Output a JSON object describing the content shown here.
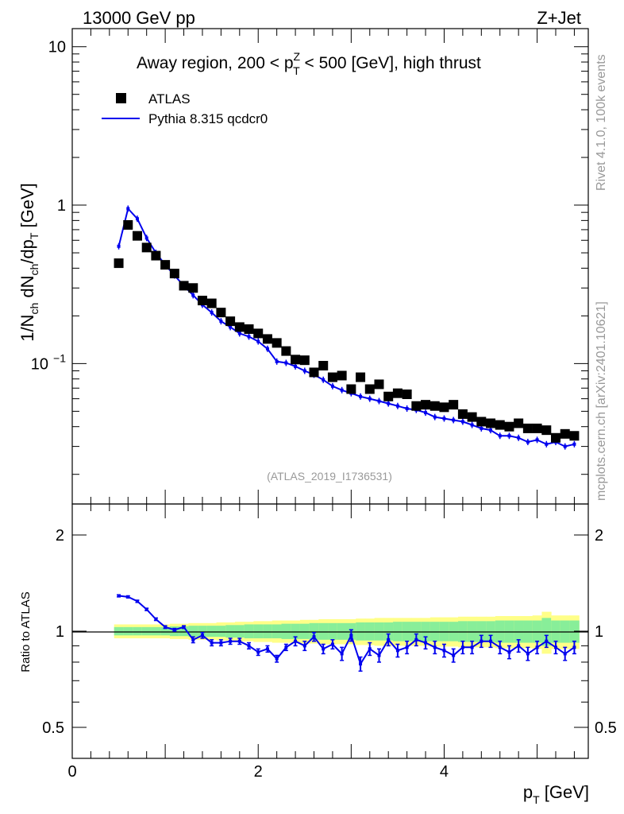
{
  "header": {
    "left": "13000 GeV pp",
    "right": "Z+Jet"
  },
  "side_labels": {
    "rivet": "Rivet 4.1.0,  100k events",
    "mcplots": "mcplots.cern.ch [arXiv:2401.10621]"
  },
  "analysis_tag": "(ATLAS_2019_I1736531)",
  "colors": {
    "data": "#000000",
    "mc": "#0000ee",
    "band_inner": "#88ee99",
    "band_outer": "#ffff88"
  },
  "chart_data": [
    {
      "type": "scatter",
      "title": "Away region, 200 < p_T^Z < 500 [GeV], high thrust",
      "title_parts": {
        "a": "Away region, 200 < p",
        "sup": "Z",
        "sub": "T",
        "b": " < 500 [GeV], high thrust"
      },
      "ylabel": "1/N_ch dN_ch/dp_T [GeV]",
      "ylabel_parts": {
        "a": "1/N",
        "s1": "ch",
        "b": " dN",
        "s2": "ch",
        "c": "/dp",
        "s3": "T",
        "d": " [GeV]"
      },
      "yscale": "log",
      "xlim": [
        0,
        5.55
      ],
      "ylim": [
        0.013,
        13
      ],
      "yticks": [
        {
          "v": 10,
          "label": "10"
        },
        {
          "v": 1,
          "label": "1"
        },
        {
          "v": 0.1,
          "label": "10",
          "sup": "−1"
        }
      ],
      "legend": {
        "position": "top-left",
        "data_label": "ATLAS",
        "mc_label": "Pythia 8.315 qcdcr0"
      },
      "series": [
        {
          "name": "ATLAS",
          "style": "markers",
          "x": [
            0.5,
            0.6,
            0.7,
            0.8,
            0.9,
            1.0,
            1.1,
            1.2,
            1.3,
            1.4,
            1.5,
            1.6,
            1.7,
            1.8,
            1.9,
            2.0,
            2.1,
            2.2,
            2.3,
            2.4,
            2.5,
            2.6,
            2.7,
            2.8,
            2.9,
            3.0,
            3.1,
            3.2,
            3.3,
            3.4,
            3.5,
            3.6,
            3.7,
            3.8,
            3.9,
            4.0,
            4.1,
            4.2,
            4.3,
            4.4,
            4.5,
            4.6,
            4.7,
            4.8,
            4.9,
            5.0,
            5.1,
            5.2,
            5.3,
            5.4
          ],
          "values": [
            0.43,
            0.75,
            0.64,
            0.54,
            0.48,
            0.42,
            0.37,
            0.31,
            0.3,
            0.25,
            0.24,
            0.21,
            0.185,
            0.17,
            0.165,
            0.155,
            0.143,
            0.135,
            0.12,
            0.106,
            0.105,
            0.088,
            0.097,
            0.082,
            0.084,
            0.069,
            0.082,
            0.069,
            0.074,
            0.062,
            0.065,
            0.064,
            0.054,
            0.055,
            0.054,
            0.053,
            0.055,
            0.048,
            0.046,
            0.043,
            0.042,
            0.041,
            0.04,
            0.042,
            0.039,
            0.039,
            0.038,
            0.034,
            0.036,
            0.035
          ]
        },
        {
          "name": "Pythia 8.315 qcdcr0",
          "style": "line",
          "x": [
            0.5,
            0.6,
            0.7,
            0.8,
            0.9,
            1.0,
            1.1,
            1.2,
            1.3,
            1.4,
            1.5,
            1.6,
            1.7,
            1.8,
            1.9,
            2.0,
            2.1,
            2.2,
            2.3,
            2.4,
            2.5,
            2.6,
            2.7,
            2.8,
            2.9,
            3.0,
            3.1,
            3.2,
            3.3,
            3.4,
            3.5,
            3.6,
            3.7,
            3.8,
            3.9,
            4.0,
            4.1,
            4.2,
            4.3,
            4.4,
            4.5,
            4.6,
            4.7,
            4.8,
            4.9,
            5.0,
            5.1,
            5.2,
            5.3,
            5.4
          ],
          "values": [
            0.55,
            0.95,
            0.82,
            0.62,
            0.5,
            0.42,
            0.36,
            0.31,
            0.27,
            0.235,
            0.21,
            0.185,
            0.17,
            0.155,
            0.148,
            0.138,
            0.124,
            0.103,
            0.101,
            0.096,
            0.09,
            0.085,
            0.079,
            0.072,
            0.068,
            0.065,
            0.062,
            0.06,
            0.058,
            0.056,
            0.054,
            0.052,
            0.051,
            0.049,
            0.046,
            0.045,
            0.044,
            0.043,
            0.041,
            0.039,
            0.038,
            0.035,
            0.035,
            0.034,
            0.032,
            0.033,
            0.031,
            0.032,
            0.03,
            0.031
          ]
        }
      ]
    },
    {
      "type": "line",
      "ylabel": "Ratio to ATLAS",
      "xlabel": "p_T [GeV]",
      "xlabel_parts": {
        "a": "p",
        "sub": "T",
        "b": " [GeV]"
      },
      "yscale": "log",
      "ylim": [
        0.4,
        2.5
      ],
      "xticks": [
        {
          "v": 0,
          "label": "0"
        },
        {
          "v": 2,
          "label": "2"
        },
        {
          "v": 4,
          "label": "4"
        }
      ],
      "yticks": [
        {
          "v": 2,
          "label": "2"
        },
        {
          "v": 1,
          "label": "1"
        },
        {
          "v": 0.5,
          "label": "0.5"
        }
      ],
      "x": [
        0.5,
        0.6,
        0.7,
        0.8,
        0.9,
        1.0,
        1.1,
        1.2,
        1.3,
        1.4,
        1.5,
        1.6,
        1.7,
        1.8,
        1.9,
        2.0,
        2.1,
        2.2,
        2.3,
        2.4,
        2.5,
        2.6,
        2.7,
        2.8,
        2.9,
        3.0,
        3.1,
        3.2,
        3.3,
        3.4,
        3.5,
        3.6,
        3.7,
        3.8,
        3.9,
        4.0,
        4.1,
        4.2,
        4.3,
        4.4,
        4.5,
        4.6,
        4.7,
        4.8,
        4.9,
        5.0,
        5.1,
        5.2,
        5.3,
        5.4
      ],
      "values": [
        1.29,
        1.28,
        1.24,
        1.17,
        1.09,
        1.03,
        1.01,
        1.03,
        0.94,
        0.97,
        0.92,
        0.92,
        0.93,
        0.93,
        0.9,
        0.86,
        0.88,
        0.82,
        0.89,
        0.93,
        0.9,
        0.96,
        0.88,
        0.91,
        0.85,
        0.97,
        0.79,
        0.88,
        0.84,
        0.94,
        0.87,
        0.89,
        0.94,
        0.92,
        0.89,
        0.87,
        0.84,
        0.89,
        0.89,
        0.93,
        0.93,
        0.89,
        0.86,
        0.9,
        0.85,
        0.89,
        0.93,
        0.89,
        0.85,
        0.89
      ],
      "errors": [
        0.01,
        0.01,
        0.01,
        0.01,
        0.01,
        0.01,
        0.01,
        0.01,
        0.02,
        0.02,
        0.02,
        0.02,
        0.02,
        0.02,
        0.02,
        0.02,
        0.02,
        0.02,
        0.02,
        0.03,
        0.03,
        0.03,
        0.03,
        0.03,
        0.04,
        0.04,
        0.04,
        0.04,
        0.04,
        0.04,
        0.04,
        0.04,
        0.04,
        0.04,
        0.04,
        0.04,
        0.04,
        0.04,
        0.04,
        0.04,
        0.04,
        0.04,
        0.04,
        0.04,
        0.04,
        0.04,
        0.04,
        0.04,
        0.04,
        0.04
      ],
      "band_inner_half": [
        0.03,
        0.03,
        0.03,
        0.03,
        0.03,
        0.03,
        0.035,
        0.035,
        0.04,
        0.04,
        0.04,
        0.04,
        0.045,
        0.045,
        0.05,
        0.05,
        0.05,
        0.05,
        0.055,
        0.055,
        0.055,
        0.06,
        0.06,
        0.06,
        0.06,
        0.06,
        0.065,
        0.065,
        0.065,
        0.065,
        0.07,
        0.07,
        0.07,
        0.07,
        0.07,
        0.07,
        0.07,
        0.075,
        0.075,
        0.075,
        0.075,
        0.08,
        0.08,
        0.08,
        0.08,
        0.08,
        0.1,
        0.08,
        0.08,
        0.08
      ],
      "band_outer_half": [
        0.05,
        0.05,
        0.05,
        0.05,
        0.05,
        0.05,
        0.055,
        0.055,
        0.06,
        0.06,
        0.06,
        0.065,
        0.065,
        0.07,
        0.07,
        0.075,
        0.075,
        0.08,
        0.08,
        0.08,
        0.085,
        0.085,
        0.09,
        0.09,
        0.09,
        0.09,
        0.095,
        0.095,
        0.1,
        0.1,
        0.1,
        0.1,
        0.1,
        0.1,
        0.105,
        0.105,
        0.105,
        0.11,
        0.11,
        0.11,
        0.11,
        0.115,
        0.115,
        0.115,
        0.115,
        0.12,
        0.15,
        0.12,
        0.12,
        0.12
      ]
    }
  ]
}
